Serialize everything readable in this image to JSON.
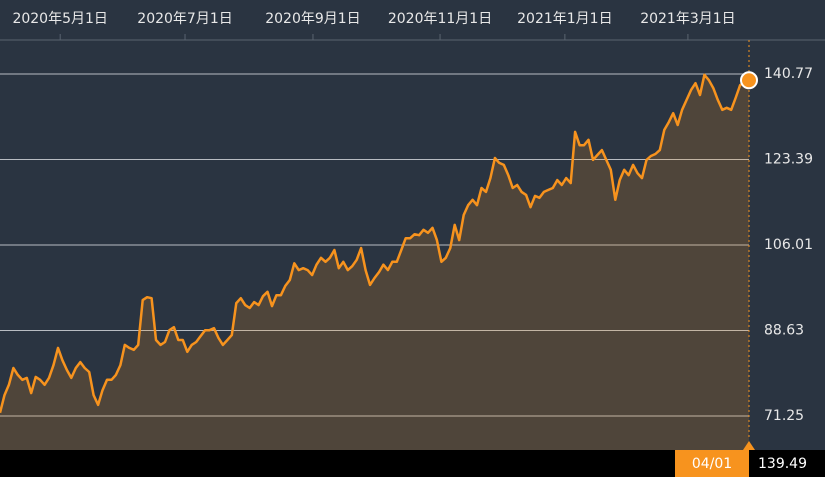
{
  "chart_data": {
    "type": "area-line",
    "xlim": [
      0,
      168
    ],
    "xticks": [
      {
        "value": 13.5,
        "label": "2020年5月1日"
      },
      {
        "value": 41.5,
        "label": "2020年7月1日"
      },
      {
        "value": 70.2,
        "label": "2020年9月1日"
      },
      {
        "value": 98.7,
        "label": "2020年11月1日"
      },
      {
        "value": 126.7,
        "label": "2021年1月1日"
      },
      {
        "value": 154.3,
        "label": "2021年3月1日"
      }
    ],
    "ylim": [
      64.34,
      147.68
    ],
    "yticks": [
      71.25,
      88.63,
      106.01,
      123.39,
      140.77
    ],
    "grid": true,
    "crosshair_date": "04/01",
    "series": [
      {
        "color": "#f7931e",
        "values": [
          71.9,
          75.5,
          77.6,
          81.0,
          79.6,
          78.6,
          79.0,
          75.9,
          79.2,
          78.6,
          77.6,
          79.0,
          81.6,
          85.1,
          82.6,
          80.6,
          79.0,
          81.0,
          82.2,
          81.0,
          80.2,
          75.5,
          73.5,
          76.5,
          78.6,
          78.6,
          79.6,
          81.6,
          85.7,
          85.1,
          84.7,
          85.7,
          94.8,
          95.4,
          95.2,
          86.7,
          85.7,
          86.3,
          88.7,
          89.3,
          86.7,
          86.7,
          84.3,
          85.7,
          86.3,
          87.5,
          88.7,
          88.7,
          89.1,
          87.1,
          85.7,
          86.7,
          87.7,
          94.2,
          95.2,
          93.8,
          93.2,
          94.4,
          93.8,
          95.6,
          96.5,
          93.6,
          95.8,
          95.8,
          97.7,
          98.9,
          102.3,
          100.9,
          101.3,
          100.9,
          99.9,
          102.0,
          103.4,
          102.6,
          103.4,
          105.0,
          101.3,
          102.6,
          100.9,
          101.7,
          103.0,
          105.4,
          100.9,
          97.9,
          99.3,
          100.5,
          102.0,
          100.9,
          102.6,
          102.6,
          105.0,
          107.4,
          107.4,
          108.2,
          108.0,
          109.1,
          108.5,
          109.5,
          107.0,
          102.6,
          103.4,
          105.4,
          110.1,
          107.0,
          112.1,
          114.1,
          115.2,
          114.1,
          117.6,
          116.8,
          119.6,
          123.7,
          122.7,
          122.3,
          120.2,
          117.6,
          118.2,
          116.8,
          116.2,
          113.7,
          116.0,
          115.6,
          116.8,
          117.2,
          117.6,
          119.2,
          118.2,
          119.6,
          118.6,
          129.0,
          126.3,
          126.3,
          127.4,
          123.3,
          124.3,
          125.3,
          123.3,
          121.3,
          115.2,
          119.2,
          121.3,
          120.2,
          122.3,
          120.6,
          119.6,
          123.3,
          124.1,
          124.5,
          125.3,
          129.4,
          131.0,
          132.8,
          130.4,
          133.5,
          135.5,
          137.5,
          138.9,
          136.5,
          140.6,
          139.5,
          137.9,
          135.5,
          133.5,
          133.9,
          133.5,
          135.9,
          138.5,
          139.1,
          139.49
        ]
      }
    ]
  }
}
